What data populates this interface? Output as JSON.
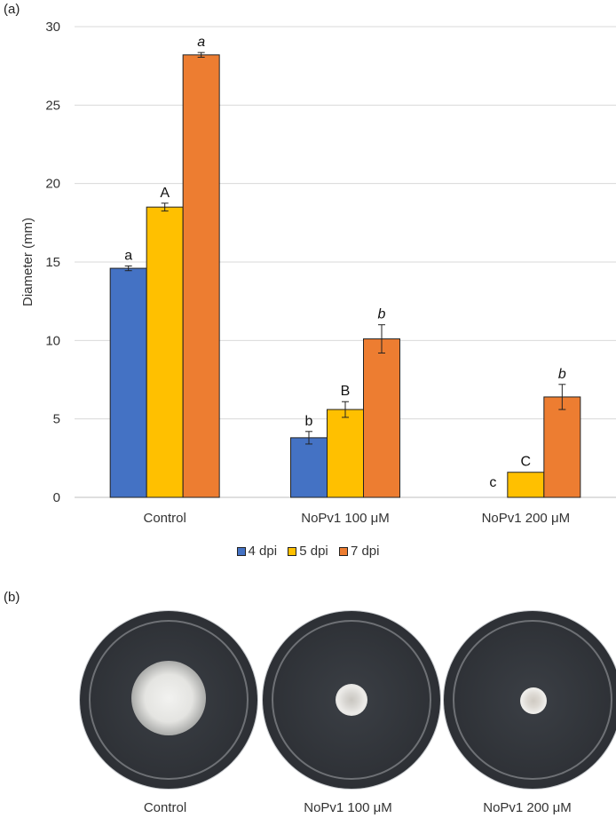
{
  "panel_a_label": "(a)",
  "panel_b_label": "(b)",
  "colors": {
    "s4": "#4472c4",
    "s5": "#ffc000",
    "s7": "#ed7d31"
  },
  "chart_data": {
    "type": "bar",
    "ylabel": "Diameter (mm)",
    "xlabel": "",
    "ylim": [
      0,
      30
    ],
    "yticks": [
      0,
      5,
      10,
      15,
      20,
      25,
      30
    ],
    "grid": true,
    "legend_position": "bottom",
    "categories": [
      "Control",
      "NoPv1 100 μM",
      "NoPv1 200 μM"
    ],
    "series": [
      {
        "name": "4 dpi",
        "values": [
          14.6,
          3.8,
          0
        ],
        "errors": [
          0.15,
          0.4,
          0
        ],
        "sig_labels": [
          "a",
          "b",
          "c"
        ],
        "italic": false
      },
      {
        "name": "5 dpi",
        "values": [
          18.5,
          5.6,
          1.6
        ],
        "errors": [
          0.25,
          0.5,
          0
        ],
        "sig_labels": [
          "A",
          "B",
          "C"
        ],
        "italic": false
      },
      {
        "name": "7 dpi",
        "values": [
          28.2,
          10.1,
          6.4
        ],
        "errors": [
          0.15,
          0.9,
          0.8
        ],
        "sig_labels": [
          "a",
          "b",
          "b"
        ],
        "italic": true
      }
    ]
  },
  "plates": [
    {
      "label": "Control",
      "colony": "large"
    },
    {
      "label": "NoPv1 100 μM",
      "colony": "small"
    },
    {
      "label": "NoPv1 200 μM",
      "colony": "small"
    }
  ]
}
